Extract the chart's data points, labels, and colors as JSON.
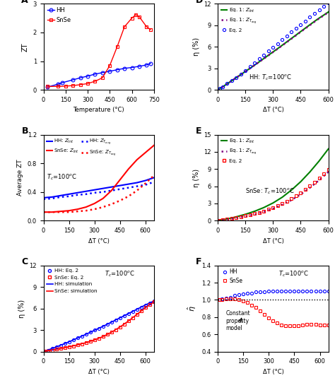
{
  "A": {
    "HH_T": [
      27,
      100,
      127,
      200,
      250,
      300,
      350,
      400,
      450,
      500,
      550,
      600,
      650,
      700,
      727
    ],
    "HH_ZT": [
      0.1,
      0.2,
      0.25,
      0.35,
      0.42,
      0.48,
      0.55,
      0.6,
      0.65,
      0.7,
      0.75,
      0.78,
      0.82,
      0.87,
      0.92
    ],
    "SnSe_T": [
      27,
      100,
      150,
      200,
      250,
      300,
      350,
      400,
      450,
      500,
      550,
      600,
      627,
      650,
      700,
      727
    ],
    "SnSe_ZT": [
      0.12,
      0.12,
      0.13,
      0.15,
      0.18,
      0.22,
      0.3,
      0.42,
      0.85,
      1.5,
      2.2,
      2.5,
      2.62,
      2.55,
      2.2,
      2.1
    ],
    "xlabel": "Temperature (°C)",
    "ylabel": "ZT",
    "xlim": [
      0,
      750
    ],
    "ylim": [
      0,
      3
    ],
    "yticks": [
      0,
      1,
      2,
      3
    ],
    "xticks": [
      0,
      150,
      300,
      450,
      600,
      750
    ],
    "label": "A"
  },
  "B": {
    "HH_Zint_dT": [
      0,
      50,
      100,
      150,
      200,
      250,
      300,
      350,
      400,
      450,
      500,
      550,
      600,
      650
    ],
    "HH_Zint_ZT": [
      0.32,
      0.33,
      0.35,
      0.37,
      0.39,
      0.41,
      0.43,
      0.45,
      0.47,
      0.49,
      0.51,
      0.53,
      0.56,
      0.6
    ],
    "HH_Zavg_dT": [
      0,
      50,
      100,
      150,
      200,
      250,
      300,
      350,
      400,
      450,
      500,
      550,
      600,
      650
    ],
    "HH_Zavg_ZT": [
      0.3,
      0.31,
      0.33,
      0.34,
      0.36,
      0.37,
      0.39,
      0.4,
      0.42,
      0.44,
      0.46,
      0.48,
      0.5,
      0.54
    ],
    "SnSe_Zint_dT": [
      0,
      50,
      100,
      150,
      200,
      250,
      300,
      350,
      400,
      450,
      500,
      550,
      600,
      650
    ],
    "SnSe_Zint_ZT": [
      0.12,
      0.12,
      0.13,
      0.14,
      0.16,
      0.19,
      0.24,
      0.31,
      0.42,
      0.57,
      0.72,
      0.85,
      0.95,
      1.05
    ],
    "SnSe_Zavg_dT": [
      0,
      50,
      100,
      150,
      200,
      250,
      300,
      350,
      400,
      450,
      500,
      550,
      600,
      650
    ],
    "SnSe_Zavg_ZT": [
      0.12,
      0.12,
      0.12,
      0.12,
      0.13,
      0.14,
      0.16,
      0.19,
      0.23,
      0.28,
      0.34,
      0.42,
      0.52,
      0.63
    ],
    "xlabel": "ΔT (°C)",
    "ylabel": "Average ZT",
    "xlim": [
      0,
      650
    ],
    "ylim": [
      0,
      1.2
    ],
    "yticks": [
      0.0,
      0.4,
      0.8,
      1.2
    ],
    "xticks": [
      0,
      150,
      300,
      450,
      600
    ],
    "label": "B"
  },
  "C": {
    "HH_eq2_dT": [
      10,
      25,
      50,
      75,
      100,
      125,
      150,
      175,
      200,
      225,
      250,
      275,
      300,
      325,
      350,
      375,
      400,
      425,
      450,
      475,
      500,
      525,
      550,
      575,
      600,
      625,
      650
    ],
    "HH_eq2_eta": [
      0.05,
      0.2,
      0.42,
      0.65,
      0.88,
      1.12,
      1.36,
      1.62,
      1.88,
      2.14,
      2.41,
      2.68,
      2.96,
      3.24,
      3.52,
      3.81,
      4.1,
      4.4,
      4.7,
      5.0,
      5.3,
      5.6,
      5.9,
      6.2,
      6.5,
      6.8,
      7.05
    ],
    "SnSe_eq2_dT": [
      10,
      25,
      50,
      75,
      100,
      125,
      150,
      175,
      200,
      225,
      250,
      275,
      300,
      325,
      350,
      375,
      400,
      425,
      450,
      475,
      500,
      525,
      550,
      575,
      600,
      625,
      650
    ],
    "SnSe_eq2_eta": [
      0.04,
      0.1,
      0.2,
      0.31,
      0.42,
      0.54,
      0.66,
      0.79,
      0.93,
      1.08,
      1.24,
      1.42,
      1.62,
      1.84,
      2.09,
      2.37,
      2.69,
      3.04,
      3.42,
      3.83,
      4.26,
      4.71,
      5.18,
      5.66,
      6.12,
      6.55,
      6.95
    ],
    "HH_sim_dT": [
      0,
      50,
      100,
      150,
      200,
      250,
      300,
      350,
      400,
      450,
      500,
      550,
      600,
      650
    ],
    "HH_sim_eta": [
      0,
      0.42,
      0.88,
      1.36,
      1.88,
      2.41,
      2.96,
      3.52,
      4.1,
      4.7,
      5.3,
      5.9,
      6.5,
      7.05
    ],
    "SnSe_sim_dT": [
      0,
      50,
      100,
      150,
      200,
      250,
      300,
      350,
      400,
      450,
      500,
      550,
      600,
      650
    ],
    "SnSe_sim_eta": [
      0,
      0.2,
      0.42,
      0.66,
      0.93,
      1.24,
      1.62,
      2.09,
      2.69,
      3.42,
      4.26,
      5.18,
      6.12,
      6.95
    ],
    "xlabel": "ΔT (°C)",
    "ylabel": "η (%)",
    "xlim": [
      0,
      650
    ],
    "ylim": [
      0,
      12
    ],
    "yticks": [
      0,
      3,
      6,
      9,
      12
    ],
    "xticks": [
      0,
      150,
      300,
      450,
      600
    ],
    "label": "C"
  },
  "D": {
    "dT": [
      0,
      20,
      40,
      60,
      80,
      100,
      125,
      150,
      175,
      200,
      225,
      250,
      275,
      300,
      325,
      350,
      375,
      400,
      425,
      450,
      475,
      500,
      525,
      550,
      575,
      600
    ],
    "Zint_eta": [
      0,
      0.33,
      0.67,
      1.01,
      1.36,
      1.71,
      2.14,
      2.58,
      3.02,
      3.47,
      3.92,
      4.38,
      4.84,
      5.3,
      5.76,
      6.23,
      6.7,
      7.18,
      7.65,
      8.13,
      8.6,
      9.08,
      9.55,
      10.0,
      10.42,
      10.85
    ],
    "Zavg_eta": [
      0,
      0.33,
      0.67,
      1.01,
      1.35,
      1.7,
      2.13,
      2.57,
      3.01,
      3.45,
      3.9,
      4.35,
      4.81,
      5.27,
      5.73,
      6.19,
      6.66,
      7.13,
      7.6,
      8.08,
      8.55,
      9.02,
      9.49,
      9.95,
      10.37,
      10.8
    ],
    "eq2_dT": [
      10,
      25,
      50,
      75,
      100,
      125,
      150,
      175,
      200,
      225,
      250,
      275,
      300,
      325,
      350,
      375,
      400,
      425,
      450,
      475,
      500,
      525,
      550,
      575,
      600
    ],
    "eq2_eta": [
      0.17,
      0.43,
      0.87,
      1.3,
      1.73,
      2.17,
      2.7,
      3.24,
      3.78,
      4.32,
      4.86,
      5.4,
      5.93,
      6.46,
      6.99,
      7.52,
      8.05,
      8.58,
      9.1,
      9.62,
      10.13,
      10.64,
      11.14,
      11.63,
      12.1
    ],
    "xlabel": "ΔT (°C)",
    "ylabel": "η (%)",
    "xlim": [
      0,
      600
    ],
    "ylim": [
      0,
      12
    ],
    "yticks": [
      0,
      3,
      6,
      9,
      12
    ],
    "xticks": [
      0,
      150,
      300,
      450,
      600
    ],
    "label": "D",
    "annotation": "HH: T_c=100°C"
  },
  "E": {
    "Zint_dT": [
      0,
      25,
      50,
      75,
      100,
      150,
      200,
      250,
      300,
      350,
      400,
      450,
      500,
      550,
      600
    ],
    "Zint_eta": [
      0,
      0.15,
      0.3,
      0.48,
      0.68,
      1.12,
      1.65,
      2.3,
      3.1,
      4.1,
      5.35,
      6.8,
      8.5,
      10.4,
      12.5
    ],
    "Zavg_dT": [
      0,
      25,
      50,
      75,
      100,
      150,
      200,
      250,
      300,
      350,
      400,
      450,
      500,
      550,
      600
    ],
    "Zavg_eta": [
      0,
      0.1,
      0.2,
      0.32,
      0.45,
      0.75,
      1.1,
      1.55,
      2.1,
      2.78,
      3.6,
      4.6,
      5.75,
      7.05,
      8.5
    ],
    "eq2_dT": [
      10,
      25,
      50,
      75,
      100,
      125,
      150,
      175,
      200,
      225,
      250,
      275,
      300,
      325,
      350,
      375,
      400,
      425,
      450,
      475,
      500,
      525,
      550,
      575,
      600
    ],
    "eq2_eta": [
      0.05,
      0.12,
      0.25,
      0.39,
      0.54,
      0.7,
      0.87,
      1.05,
      1.25,
      1.46,
      1.7,
      1.96,
      2.25,
      2.58,
      2.95,
      3.36,
      3.82,
      4.32,
      4.87,
      5.46,
      6.09,
      6.75,
      7.44,
      8.14,
      8.86
    ],
    "xlabel": "ΔT (°C)",
    "ylabel": "η (%)",
    "xlim": [
      0,
      600
    ],
    "ylim": [
      0,
      15
    ],
    "yticks": [
      0,
      3,
      6,
      9,
      12,
      15
    ],
    "xticks": [
      0,
      150,
      300,
      450,
      600
    ],
    "label": "E",
    "annotation": "SnSe: T_c=100°C"
  },
  "F": {
    "HH_dT": [
      10,
      25,
      50,
      75,
      100,
      125,
      150,
      175,
      200,
      225,
      250,
      275,
      300,
      325,
      350,
      375,
      400,
      425,
      450,
      475,
      500,
      525,
      550,
      575,
      600,
      625,
      650
    ],
    "HH_eta_hat": [
      1.0,
      1.01,
      1.02,
      1.03,
      1.05,
      1.06,
      1.07,
      1.08,
      1.08,
      1.09,
      1.09,
      1.09,
      1.1,
      1.1,
      1.1,
      1.1,
      1.1,
      1.1,
      1.1,
      1.1,
      1.1,
      1.1,
      1.1,
      1.1,
      1.1,
      1.1,
      1.1
    ],
    "SnSe_dT": [
      10,
      25,
      50,
      75,
      100,
      125,
      150,
      175,
      200,
      225,
      250,
      275,
      300,
      325,
      350,
      375,
      400,
      425,
      450,
      475,
      500,
      525,
      550,
      575,
      600,
      625,
      650
    ],
    "SnSe_eta_hat": [
      1.0,
      1.0,
      1.01,
      1.01,
      1.01,
      1.0,
      0.99,
      0.97,
      0.94,
      0.91,
      0.87,
      0.83,
      0.79,
      0.76,
      0.73,
      0.71,
      0.7,
      0.7,
      0.7,
      0.7,
      0.71,
      0.72,
      0.72,
      0.72,
      0.71,
      0.71,
      0.71
    ],
    "xlabel": "ΔT (°C)",
    "ylabel": "$\\hat{\\eta}$",
    "xlim": [
      0,
      650
    ],
    "ylim": [
      0.4,
      1.4
    ],
    "yticks": [
      0.4,
      0.6,
      0.8,
      1.0,
      1.2,
      1.4
    ],
    "xticks": [
      0,
      150,
      300,
      450,
      600
    ],
    "label": "F",
    "annotation": "T_c=100°C"
  }
}
